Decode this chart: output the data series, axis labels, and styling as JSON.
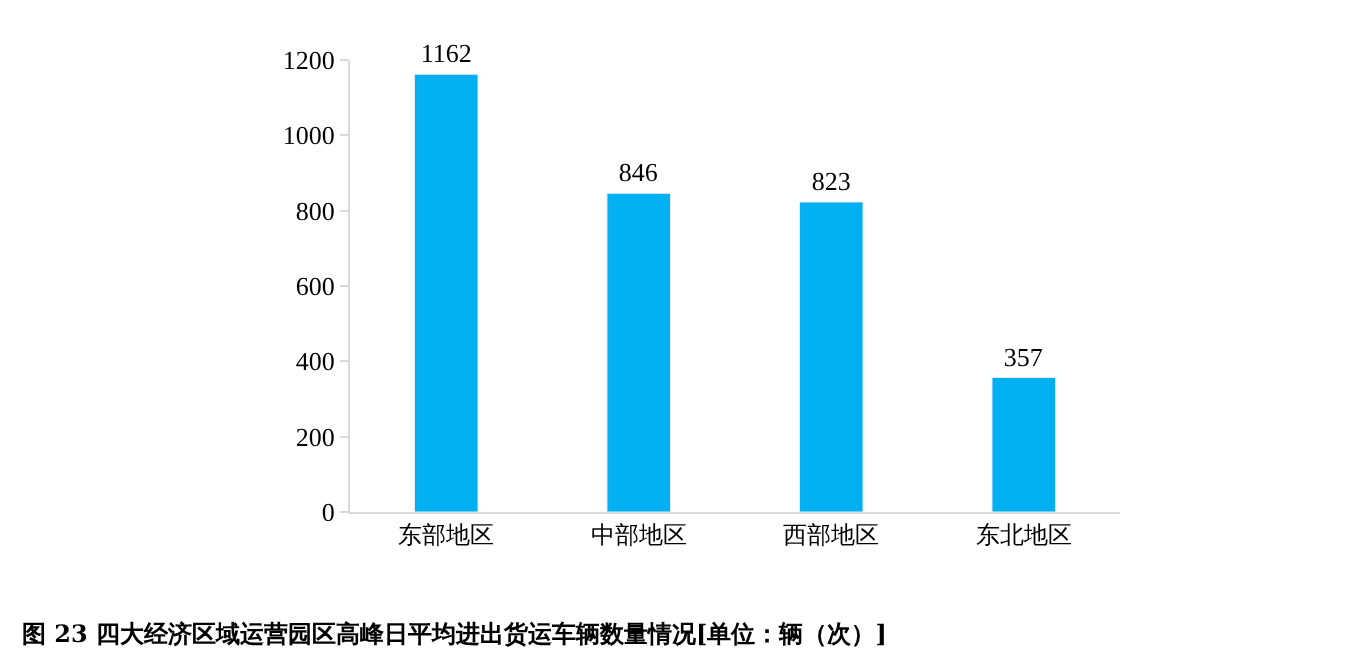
{
  "chart_data": {
    "type": "bar",
    "title": "图 23 四大经济区域运营园区高峰日平均进出货运车辆数量情况[单位：辆（次）]",
    "categories": [
      "东部地区",
      "中部地区",
      "西部地区",
      "东北地区"
    ],
    "values": [
      1162,
      846,
      823,
      357
    ],
    "color": "#00b0f0",
    "ylim": [
      0,
      1200
    ],
    "yticks": [
      0,
      200,
      400,
      600,
      800,
      1000,
      1200
    ],
    "data_labels": true,
    "legend": false
  }
}
